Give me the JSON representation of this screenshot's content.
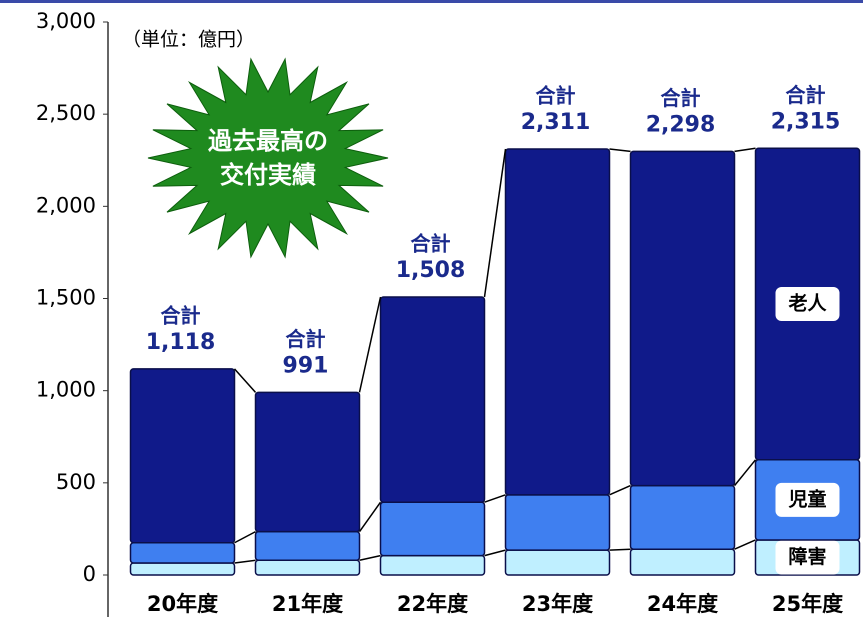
{
  "chart_data": {
    "type": "stacked_bar",
    "note": "（単位：億円）",
    "callout": [
      "過去最高の",
      "交付実績"
    ],
    "categories": [
      "20年度",
      "21年度",
      "22年度",
      "23年度",
      "24年度",
      "25年度"
    ],
    "series": [
      {
        "name": "障害",
        "color": "#bfefff",
        "values": [
          65,
          80,
          105,
          135,
          140,
          190
        ]
      },
      {
        "name": "児童",
        "color": "#3f7ff0",
        "values": [
          110,
          155,
          290,
          300,
          345,
          435
        ]
      },
      {
        "name": "老人",
        "color": "#101a8a",
        "values": [
          943,
          756,
          1113,
          1876,
          1813,
          1690
        ]
      }
    ],
    "total_label": "合計",
    "totals": [
      1118,
      991,
      1508,
      2311,
      2298,
      2315
    ],
    "total_labels": [
      "1,118",
      "991",
      "1,508",
      "2,311",
      "2,298",
      "2,315"
    ],
    "ylim": [
      0,
      3000
    ],
    "yticks": [
      0,
      500,
      {
        "value": 1000,
        "label": "1,000"
      },
      {
        "value": 1500,
        "label": "1,500"
      },
      {
        "value": 2000,
        "label": "2,000"
      },
      {
        "value": 2500,
        "label": "2,500"
      },
      {
        "value": 3000,
        "label": "3,000"
      }
    ]
  }
}
